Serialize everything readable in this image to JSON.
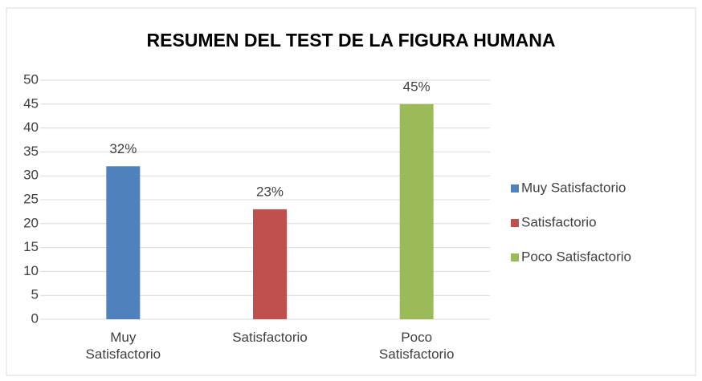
{
  "chart_data": {
    "type": "bar",
    "title": "RESUMEN DEL TEST DE LA FIGURA HUMANA",
    "categories": [
      "Muy Satisfactorio",
      "Satisfactorio",
      "Poco Satisfactorio"
    ],
    "values": [
      32,
      23,
      45
    ],
    "value_labels": [
      "32%",
      "23%",
      "45%"
    ],
    "colors": [
      "#4f81bd",
      "#c0504d",
      "#9bbb59"
    ],
    "ylim": [
      0,
      50
    ],
    "yticks": [
      0,
      5,
      10,
      15,
      20,
      25,
      30,
      35,
      40,
      45,
      50
    ],
    "grid": true,
    "legend": "right"
  }
}
